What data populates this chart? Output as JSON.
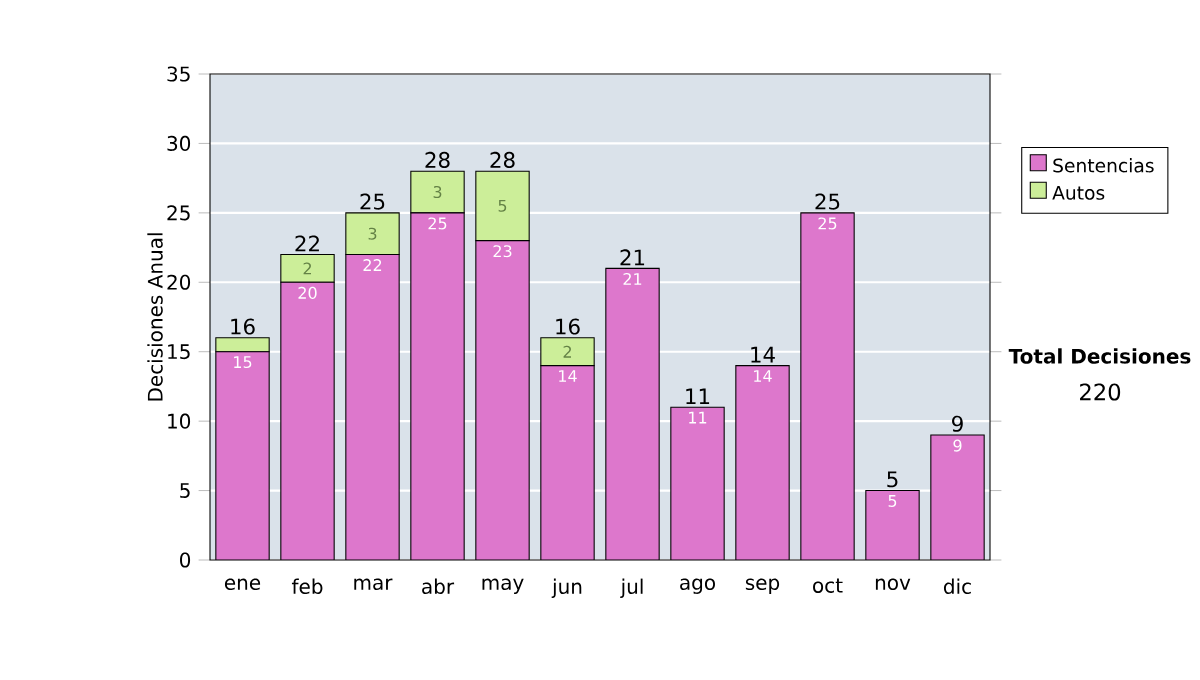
{
  "chart_data": {
    "type": "bar",
    "stacked": true,
    "ylabel": "Decisiones Anual",
    "categories": [
      "ene",
      "feb",
      "mar",
      "abr",
      "may",
      "jun",
      "jul",
      "ago",
      "sep",
      "oct",
      "nov",
      "dic"
    ],
    "series": [
      {
        "name": "Sentencias",
        "color": "#dd77cc",
        "values": [
          15,
          20,
          22,
          25,
          23,
          14,
          21,
          11,
          14,
          25,
          5,
          9
        ],
        "value_labels": [
          "15",
          "20",
          "22",
          "25",
          "23",
          "14",
          "21",
          "11",
          "14",
          "25",
          "5",
          "9"
        ]
      },
      {
        "name": "Autos",
        "color": "#ccee99",
        "values": [
          1,
          2,
          3,
          3,
          5,
          2,
          0,
          0,
          0,
          0,
          0,
          0
        ],
        "value_labels": [
          null,
          "2",
          "3",
          "3",
          "5",
          "2",
          null,
          null,
          null,
          null,
          null,
          null
        ]
      }
    ],
    "totals": [
      "16",
      "22",
      "25",
      "28",
      "28",
      "16",
      "21",
      "11",
      "14",
      "25",
      "5",
      "9"
    ],
    "ylim": [
      0,
      35
    ],
    "yticks": [
      0,
      5,
      10,
      15,
      20,
      25,
      30,
      35
    ],
    "grid": "y",
    "legend": "right",
    "annotations": [
      "Total Decisiones",
      "220"
    ]
  }
}
